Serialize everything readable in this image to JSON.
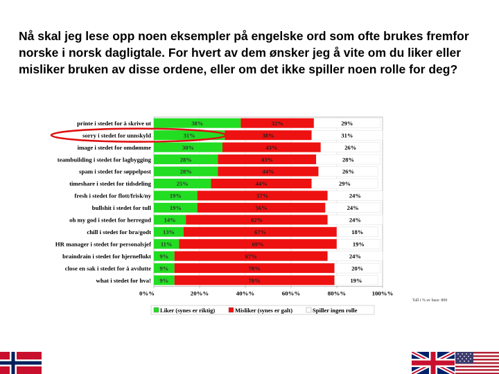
{
  "heading": "Nå skal jeg lese opp noen eksempler på engelske ord som ofte brukes fremfor norske i norsk dagligtale. For hvert av dem ønsker jeg å vite om du liker eller misliker bruken av disse ordene, eller om det ikke spiller noen rolle for deg?",
  "note": "Tall i % av base: 800",
  "colors": {
    "liker": "#22dd22",
    "misliker": "#ee1111",
    "ingen": "#ffffff",
    "highlight": "#dd1111"
  },
  "flags": {
    "left": "norway-flag-icon",
    "right": [
      "uk-flag-icon",
      "us-flag-icon"
    ]
  },
  "chart_data": {
    "type": "bar",
    "orientation": "horizontal",
    "stacked": "percent",
    "categories": [
      "printe i stedet for å skrive ut",
      "sorry i stedet for unnskyld",
      "image i stedet for omdømme",
      "teambuilding i stedet for lagbygging",
      "spam i stedet for søppelpost",
      "timeshare i stedet  for  tidsdeling",
      "fresh i stedet for flott/frisk/ny",
      "bullshit i stedet for tull",
      "oh my god i stedet for herregud",
      "chill i stedet for bra/godt",
      "HR manager i stedet for personalsjef",
      "braindrain i stedet for hjerneflukt",
      "close en sak i stedet for å avslutte",
      "what i stedet for hva!"
    ],
    "series": [
      {
        "name": "Liker (synes er riktig)",
        "values": [
          38,
          31,
          30,
          28,
          28,
          25,
          19,
          19,
          14,
          13,
          11,
          9,
          9,
          9
        ],
        "labels": [
          "38%",
          "31%",
          "30%",
          "28%",
          "28%",
          "25%",
          "19%",
          "19%",
          "14%",
          "13%",
          "11%",
          "9%",
          "9%",
          "9%"
        ]
      },
      {
        "name": "Misliker (synes er galt)",
        "values": [
          32,
          38,
          43,
          43,
          44,
          44,
          57,
          56,
          62,
          67,
          69,
          67,
          70,
          70
        ],
        "labels": [
          "32%",
          "38%",
          "43%",
          "43%",
          "44%",
          "44%",
          "57%",
          "56%",
          "62%",
          "67%",
          "69%",
          "67%",
          "70%",
          "70%"
        ]
      },
      {
        "name": "Spiller ingen rolle",
        "values": [
          29,
          31,
          26,
          28,
          26,
          29,
          24,
          24,
          24,
          18,
          19,
          24,
          20,
          19
        ],
        "labels": [
          "29%",
          "31%",
          "26%",
          "28%",
          "26%",
          "29%",
          "24%",
          "24%",
          "24%",
          "18%",
          "19%",
          "24%",
          "20%",
          "19%"
        ]
      }
    ],
    "x_ticks": [
      "0%%",
      "20%%",
      "40%%",
      "60%%",
      "80%%",
      "100%%"
    ],
    "xlim": [
      0,
      100
    ],
    "legend_position": "bottom",
    "highlighted_category": "sorry i stedet for unnskyld"
  }
}
